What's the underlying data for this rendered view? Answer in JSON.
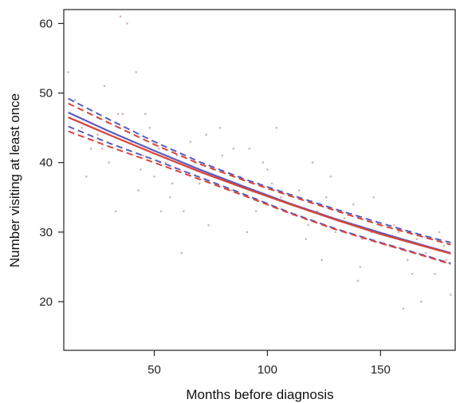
{
  "chart_data": {
    "type": "scatter",
    "title": "",
    "xlabel": "Months before diagnosis",
    "ylabel": "Number visiting at least once",
    "xlim": [
      10,
      183
    ],
    "ylim": [
      13,
      62
    ],
    "xticks": [
      50,
      100,
      150
    ],
    "yticks": [
      20,
      30,
      40,
      50,
      60
    ],
    "grid": false,
    "series": [
      {
        "color": "#5b5bbf",
        "style": "solid",
        "x": [
          12,
          30,
          50,
          70,
          90,
          110,
          130,
          150,
          170,
          181
        ],
        "y": [
          47.2,
          44.5,
          41.7,
          39.0,
          36.5,
          34.1,
          31.9,
          29.9,
          28.0,
          27.0
        ]
      },
      {
        "color": "#d9433b",
        "style": "solid",
        "x": [
          12,
          30,
          50,
          70,
          90,
          110,
          130,
          150,
          170,
          181
        ],
        "y": [
          46.5,
          44.0,
          41.3,
          38.7,
          36.3,
          34.0,
          31.8,
          29.7,
          27.9,
          26.9
        ]
      },
      {
        "color": "#5b5bbf",
        "style": "dashed",
        "x": [
          12,
          30,
          50,
          70,
          90,
          110,
          130,
          150,
          170,
          181
        ],
        "y": [
          49.2,
          46.2,
          43.0,
          40.1,
          37.6,
          35.4,
          33.3,
          31.3,
          29.4,
          28.5
        ]
      },
      {
        "color": "#5b5bbf",
        "style": "dashed",
        "x": [
          12,
          30,
          50,
          70,
          90,
          110,
          130,
          150,
          170,
          181
        ],
        "y": [
          45.2,
          42.8,
          40.4,
          37.9,
          35.4,
          32.8,
          30.5,
          28.5,
          26.6,
          25.5
        ]
      },
      {
        "color": "#d9433b",
        "style": "dashed",
        "x": [
          12,
          30,
          50,
          70,
          90,
          110,
          130,
          150,
          170,
          181
        ],
        "y": [
          48.5,
          45.7,
          42.6,
          39.8,
          37.4,
          35.2,
          33.1,
          31.0,
          29.2,
          28.2
        ]
      },
      {
        "color": "#d9433b",
        "style": "dashed",
        "x": [
          12,
          30,
          50,
          70,
          90,
          110,
          130,
          150,
          170,
          181
        ],
        "y": [
          44.5,
          42.3,
          40.0,
          37.6,
          35.2,
          32.7,
          30.4,
          28.4,
          26.5,
          25.4
        ]
      }
    ],
    "points": {
      "color": "#c9a9a9",
      "x": [
        12,
        15,
        18,
        22,
        25,
        28,
        33,
        35,
        38,
        40,
        42,
        44,
        46,
        48,
        50,
        52,
        55,
        58,
        60,
        63,
        66,
        70,
        73,
        76,
        80,
        84,
        88,
        92,
        95,
        98,
        102,
        106,
        110,
        114,
        118,
        122,
        126,
        130,
        134,
        138,
        142,
        146,
        150,
        154,
        158,
        162,
        166,
        170,
        174,
        178,
        181,
        20,
        27,
        34,
        45,
        57,
        68,
        79,
        91,
        104,
        117,
        128,
        141,
        156,
        168,
        179,
        30,
        43,
        62,
        85,
        100,
        124,
        147,
        164,
        36,
        53,
        74,
        96,
        120,
        140,
        160,
        176
      ],
      "y": [
        53,
        49,
        45,
        42,
        44,
        51,
        33,
        61,
        60,
        43,
        53,
        39,
        47,
        45,
        38,
        42,
        40,
        37,
        41,
        33,
        43,
        37,
        44,
        39,
        41,
        36,
        38,
        42,
        33,
        40,
        37,
        35,
        34,
        36,
        31,
        33,
        35,
        30,
        32,
        34,
        29,
        30,
        31,
        28,
        30,
        26,
        29,
        27,
        24,
        28,
        21,
        38,
        42,
        47,
        41,
        35,
        40,
        45,
        30,
        45,
        29,
        38,
        25,
        31,
        20,
        26,
        40,
        36,
        27,
        42,
        39,
        26,
        35,
        24,
        47,
        33,
        31,
        37,
        40,
        23,
        19,
        30
      ]
    }
  }
}
